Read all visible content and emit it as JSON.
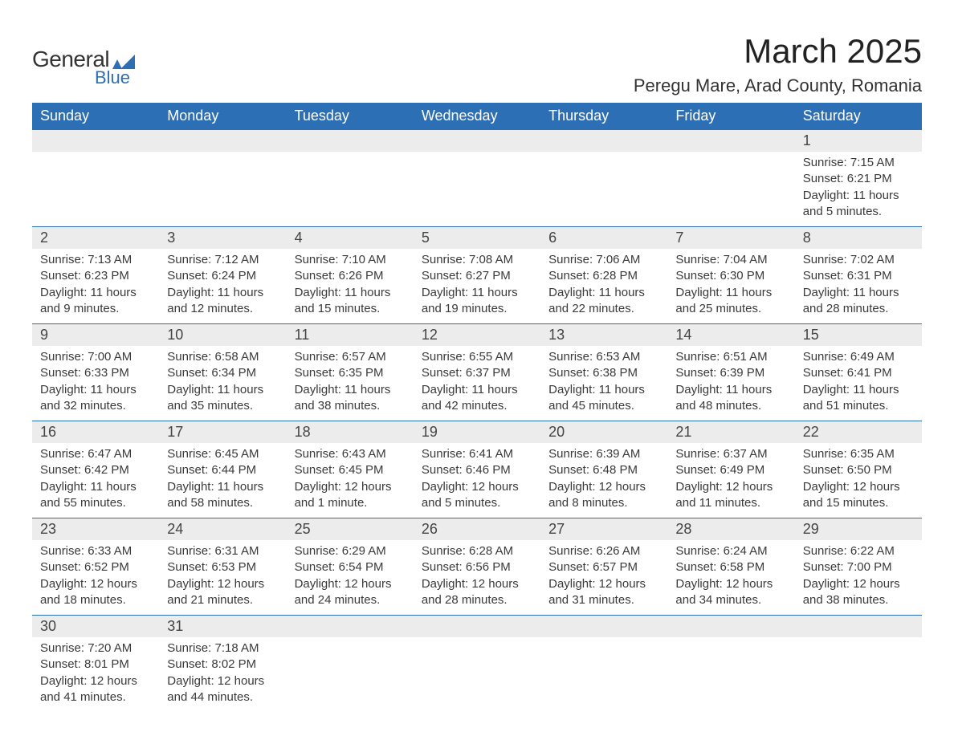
{
  "logo": {
    "text_general": "General",
    "text_blue": "Blue",
    "accent_color": "#2d6fb5",
    "text_color": "#333333"
  },
  "title": "March 2025",
  "location": "Peregu Mare, Arad County, Romania",
  "colors": {
    "header_bg": "#2d6fb5",
    "header_text": "#ffffff",
    "daynum_bg": "#ececec",
    "row_border": "#2d6fb5",
    "body_text": "#3a3a3a",
    "page_bg": "#ffffff"
  },
  "typography": {
    "title_fontsize": 42,
    "location_fontsize": 22,
    "dayheader_fontsize": 18,
    "daynum_fontsize": 18,
    "detail_fontsize": 15,
    "font_family": "Arial"
  },
  "day_headers": [
    "Sunday",
    "Monday",
    "Tuesday",
    "Wednesday",
    "Thursday",
    "Friday",
    "Saturday"
  ],
  "weeks": [
    [
      null,
      null,
      null,
      null,
      null,
      null,
      {
        "n": "1",
        "sunrise": "Sunrise: 7:15 AM",
        "sunset": "Sunset: 6:21 PM",
        "day_a": "Daylight: 11 hours",
        "day_b": "and 5 minutes."
      }
    ],
    [
      {
        "n": "2",
        "sunrise": "Sunrise: 7:13 AM",
        "sunset": "Sunset: 6:23 PM",
        "day_a": "Daylight: 11 hours",
        "day_b": "and 9 minutes."
      },
      {
        "n": "3",
        "sunrise": "Sunrise: 7:12 AM",
        "sunset": "Sunset: 6:24 PM",
        "day_a": "Daylight: 11 hours",
        "day_b": "and 12 minutes."
      },
      {
        "n": "4",
        "sunrise": "Sunrise: 7:10 AM",
        "sunset": "Sunset: 6:26 PM",
        "day_a": "Daylight: 11 hours",
        "day_b": "and 15 minutes."
      },
      {
        "n": "5",
        "sunrise": "Sunrise: 7:08 AM",
        "sunset": "Sunset: 6:27 PM",
        "day_a": "Daylight: 11 hours",
        "day_b": "and 19 minutes."
      },
      {
        "n": "6",
        "sunrise": "Sunrise: 7:06 AM",
        "sunset": "Sunset: 6:28 PM",
        "day_a": "Daylight: 11 hours",
        "day_b": "and 22 minutes."
      },
      {
        "n": "7",
        "sunrise": "Sunrise: 7:04 AM",
        "sunset": "Sunset: 6:30 PM",
        "day_a": "Daylight: 11 hours",
        "day_b": "and 25 minutes."
      },
      {
        "n": "8",
        "sunrise": "Sunrise: 7:02 AM",
        "sunset": "Sunset: 6:31 PM",
        "day_a": "Daylight: 11 hours",
        "day_b": "and 28 minutes."
      }
    ],
    [
      {
        "n": "9",
        "sunrise": "Sunrise: 7:00 AM",
        "sunset": "Sunset: 6:33 PM",
        "day_a": "Daylight: 11 hours",
        "day_b": "and 32 minutes."
      },
      {
        "n": "10",
        "sunrise": "Sunrise: 6:58 AM",
        "sunset": "Sunset: 6:34 PM",
        "day_a": "Daylight: 11 hours",
        "day_b": "and 35 minutes."
      },
      {
        "n": "11",
        "sunrise": "Sunrise: 6:57 AM",
        "sunset": "Sunset: 6:35 PM",
        "day_a": "Daylight: 11 hours",
        "day_b": "and 38 minutes."
      },
      {
        "n": "12",
        "sunrise": "Sunrise: 6:55 AM",
        "sunset": "Sunset: 6:37 PM",
        "day_a": "Daylight: 11 hours",
        "day_b": "and 42 minutes."
      },
      {
        "n": "13",
        "sunrise": "Sunrise: 6:53 AM",
        "sunset": "Sunset: 6:38 PM",
        "day_a": "Daylight: 11 hours",
        "day_b": "and 45 minutes."
      },
      {
        "n": "14",
        "sunrise": "Sunrise: 6:51 AM",
        "sunset": "Sunset: 6:39 PM",
        "day_a": "Daylight: 11 hours",
        "day_b": "and 48 minutes."
      },
      {
        "n": "15",
        "sunrise": "Sunrise: 6:49 AM",
        "sunset": "Sunset: 6:41 PM",
        "day_a": "Daylight: 11 hours",
        "day_b": "and 51 minutes."
      }
    ],
    [
      {
        "n": "16",
        "sunrise": "Sunrise: 6:47 AM",
        "sunset": "Sunset: 6:42 PM",
        "day_a": "Daylight: 11 hours",
        "day_b": "and 55 minutes."
      },
      {
        "n": "17",
        "sunrise": "Sunrise: 6:45 AM",
        "sunset": "Sunset: 6:44 PM",
        "day_a": "Daylight: 11 hours",
        "day_b": "and 58 minutes."
      },
      {
        "n": "18",
        "sunrise": "Sunrise: 6:43 AM",
        "sunset": "Sunset: 6:45 PM",
        "day_a": "Daylight: 12 hours",
        "day_b": "and 1 minute."
      },
      {
        "n": "19",
        "sunrise": "Sunrise: 6:41 AM",
        "sunset": "Sunset: 6:46 PM",
        "day_a": "Daylight: 12 hours",
        "day_b": "and 5 minutes."
      },
      {
        "n": "20",
        "sunrise": "Sunrise: 6:39 AM",
        "sunset": "Sunset: 6:48 PM",
        "day_a": "Daylight: 12 hours",
        "day_b": "and 8 minutes."
      },
      {
        "n": "21",
        "sunrise": "Sunrise: 6:37 AM",
        "sunset": "Sunset: 6:49 PM",
        "day_a": "Daylight: 12 hours",
        "day_b": "and 11 minutes."
      },
      {
        "n": "22",
        "sunrise": "Sunrise: 6:35 AM",
        "sunset": "Sunset: 6:50 PM",
        "day_a": "Daylight: 12 hours",
        "day_b": "and 15 minutes."
      }
    ],
    [
      {
        "n": "23",
        "sunrise": "Sunrise: 6:33 AM",
        "sunset": "Sunset: 6:52 PM",
        "day_a": "Daylight: 12 hours",
        "day_b": "and 18 minutes."
      },
      {
        "n": "24",
        "sunrise": "Sunrise: 6:31 AM",
        "sunset": "Sunset: 6:53 PM",
        "day_a": "Daylight: 12 hours",
        "day_b": "and 21 minutes."
      },
      {
        "n": "25",
        "sunrise": "Sunrise: 6:29 AM",
        "sunset": "Sunset: 6:54 PM",
        "day_a": "Daylight: 12 hours",
        "day_b": "and 24 minutes."
      },
      {
        "n": "26",
        "sunrise": "Sunrise: 6:28 AM",
        "sunset": "Sunset: 6:56 PM",
        "day_a": "Daylight: 12 hours",
        "day_b": "and 28 minutes."
      },
      {
        "n": "27",
        "sunrise": "Sunrise: 6:26 AM",
        "sunset": "Sunset: 6:57 PM",
        "day_a": "Daylight: 12 hours",
        "day_b": "and 31 minutes."
      },
      {
        "n": "28",
        "sunrise": "Sunrise: 6:24 AM",
        "sunset": "Sunset: 6:58 PM",
        "day_a": "Daylight: 12 hours",
        "day_b": "and 34 minutes."
      },
      {
        "n": "29",
        "sunrise": "Sunrise: 6:22 AM",
        "sunset": "Sunset: 7:00 PM",
        "day_a": "Daylight: 12 hours",
        "day_b": "and 38 minutes."
      }
    ],
    [
      {
        "n": "30",
        "sunrise": "Sunrise: 7:20 AM",
        "sunset": "Sunset: 8:01 PM",
        "day_a": "Daylight: 12 hours",
        "day_b": "and 41 minutes."
      },
      {
        "n": "31",
        "sunrise": "Sunrise: 7:18 AM",
        "sunset": "Sunset: 8:02 PM",
        "day_a": "Daylight: 12 hours",
        "day_b": "and 44 minutes."
      },
      null,
      null,
      null,
      null,
      null
    ]
  ]
}
